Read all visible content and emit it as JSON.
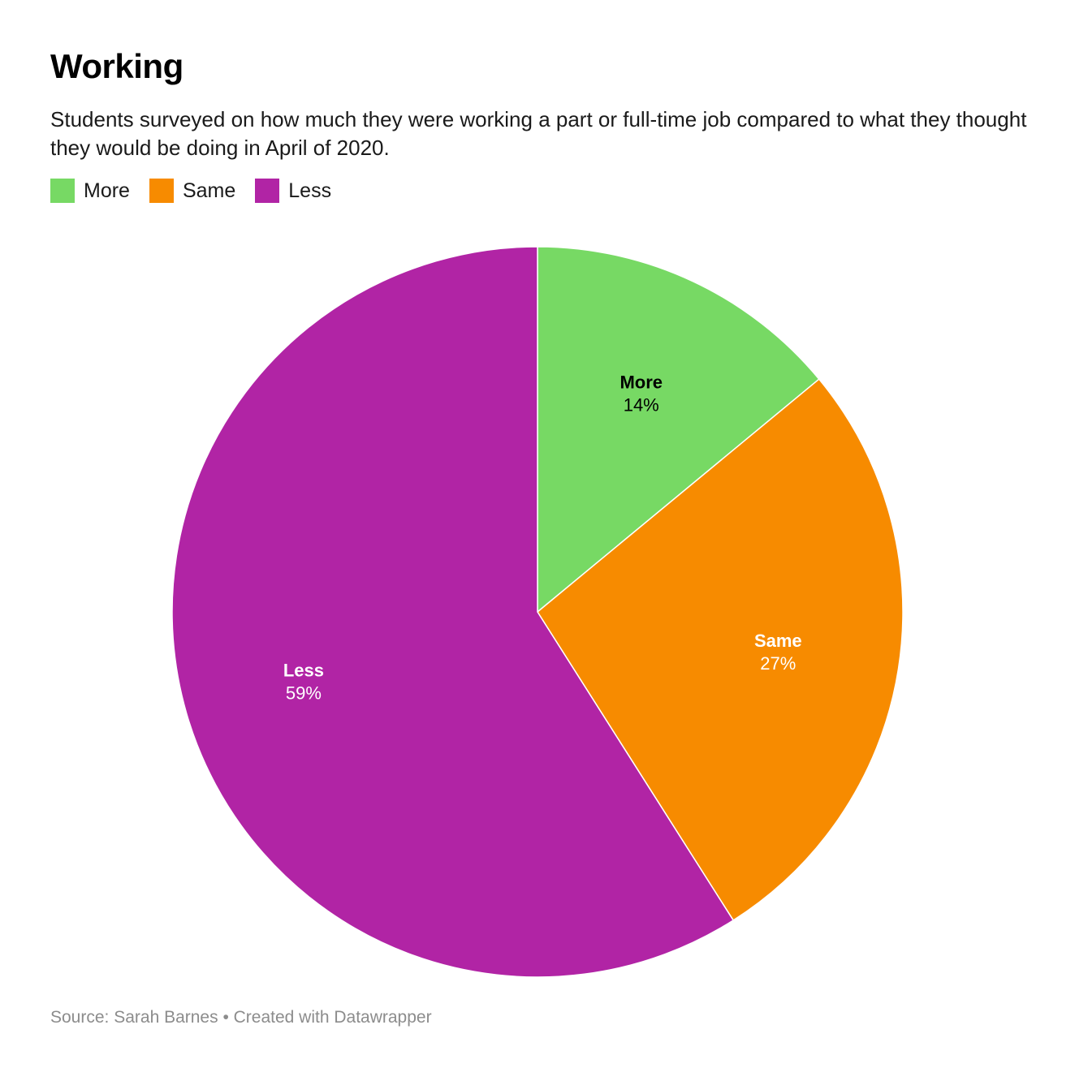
{
  "header": {
    "title": "Working",
    "subtitle": "Students surveyed on how much they were working a part or full-time job compared to what they thought they would be doing in April of 2020."
  },
  "legend": [
    {
      "label": "More",
      "color": "#77d964"
    },
    {
      "label": "Same",
      "color": "#f78b00"
    },
    {
      "label": "Less",
      "color": "#b124a5"
    }
  ],
  "footer": {
    "source": "Source: Sarah Barnes • Created with Datawrapper"
  },
  "chart_data": {
    "type": "pie",
    "title": "Working",
    "subtitle": "Students surveyed on how much they were working a part or full-time job compared to what they thought they would be doing in April of 2020.",
    "legend_position": "top-left",
    "start_angle": "12 o'clock, clockwise",
    "slices": [
      {
        "label": "More",
        "value": 14,
        "display": "14%",
        "color": "#77d964",
        "label_color": "#000000"
      },
      {
        "label": "Same",
        "value": 27,
        "display": "27%",
        "color": "#f78b00",
        "label_color": "#ffffff"
      },
      {
        "label": "Less",
        "value": 59,
        "display": "59%",
        "color": "#b124a5",
        "label_color": "#ffffff"
      }
    ]
  }
}
